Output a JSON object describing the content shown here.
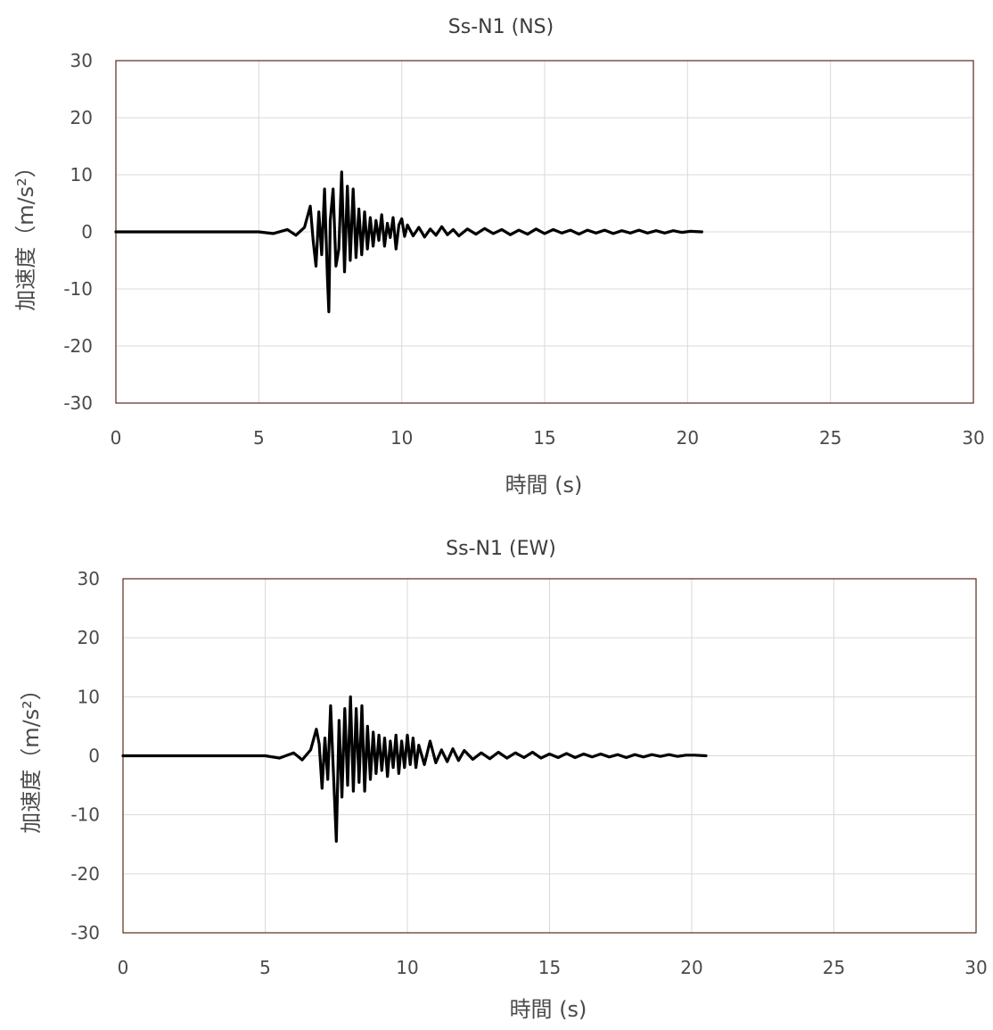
{
  "charts": [
    {
      "id": "ns",
      "title": "Ss-N1 (NS)",
      "xlabel": "時間 (s)",
      "ylabel": "加速度（m/s²）",
      "xticks": [
        "0",
        "5",
        "10",
        "15",
        "20",
        "25",
        "30"
      ],
      "yticks": [
        "30",
        "20",
        "10",
        "0",
        "-10",
        "-20",
        "-30"
      ]
    },
    {
      "id": "ew",
      "title": "Ss-N1 (EW)",
      "xlabel": "時間 (s)",
      "ylabel": "加速度（m/s²）",
      "xticks": [
        "0",
        "5",
        "10",
        "15",
        "20",
        "25",
        "30"
      ],
      "yticks": [
        "30",
        "20",
        "10",
        "0",
        "-10",
        "-20",
        "-30"
      ]
    }
  ],
  "chart_data": [
    {
      "type": "line",
      "title": "Ss-N1 (NS)",
      "xlabel": "時間 (s)",
      "ylabel": "加速度（m/s²）",
      "xlim": [
        0,
        30
      ],
      "ylim": [
        -30,
        30
      ],
      "grid": true,
      "series": [
        {
          "color": "#000000",
          "x": [
            0,
            5.0,
            5.5,
            6.0,
            6.3,
            6.6,
            6.8,
            6.9,
            7.0,
            7.1,
            7.2,
            7.3,
            7.4,
            7.45,
            7.5,
            7.6,
            7.7,
            7.8,
            7.9,
            8.0,
            8.1,
            8.2,
            8.3,
            8.4,
            8.5,
            8.6,
            8.7,
            8.8,
            8.9,
            9.0,
            9.1,
            9.2,
            9.3,
            9.4,
            9.5,
            9.6,
            9.7,
            9.8,
            9.9,
            10.0,
            10.1,
            10.2,
            10.4,
            10.6,
            10.8,
            11.0,
            11.2,
            11.4,
            11.6,
            11.8,
            12.0,
            12.3,
            12.6,
            12.9,
            13.2,
            13.5,
            13.8,
            14.1,
            14.4,
            14.7,
            15.0,
            15.3,
            15.6,
            15.9,
            16.2,
            16.5,
            16.8,
            17.1,
            17.4,
            17.7,
            18.0,
            18.3,
            18.6,
            18.9,
            19.2,
            19.5,
            19.8,
            20.1,
            20.5
          ],
          "y": [
            0,
            0,
            -0.3,
            0.4,
            -0.6,
            0.8,
            4.5,
            -1.5,
            -6,
            3.5,
            -4,
            7.5,
            -8,
            -14,
            2,
            7.5,
            -6,
            -3,
            10.5,
            -7,
            8,
            -5,
            7.5,
            -4.5,
            4,
            -4,
            3.5,
            -3,
            2.5,
            -2.5,
            2,
            -1.5,
            3,
            -2.5,
            1.5,
            -1,
            2.5,
            -3,
            1.2,
            2.3,
            -0.8,
            1.2,
            -0.7,
            0.8,
            -0.9,
            0.5,
            -0.6,
            0.9,
            -0.5,
            0.4,
            -0.7,
            0.5,
            -0.4,
            0.6,
            -0.3,
            0.4,
            -0.5,
            0.3,
            -0.4,
            0.5,
            -0.3,
            0.4,
            -0.2,
            0.3,
            -0.4,
            0.3,
            -0.2,
            0.3,
            -0.3,
            0.2,
            -0.2,
            0.3,
            -0.2,
            0.2,
            -0.2,
            0.2,
            -0.1,
            0.1,
            0
          ]
        }
      ]
    },
    {
      "type": "line",
      "title": "Ss-N1 (EW)",
      "xlabel": "時間 (s)",
      "ylabel": "加速度（m/s²）",
      "xlim": [
        0,
        30
      ],
      "ylim": [
        -30,
        30
      ],
      "grid": true,
      "series": [
        {
          "color": "#000000",
          "x": [
            0,
            5.0,
            5.5,
            6.0,
            6.3,
            6.6,
            6.8,
            6.9,
            7.0,
            7.1,
            7.2,
            7.3,
            7.4,
            7.5,
            7.6,
            7.7,
            7.8,
            7.9,
            8.0,
            8.1,
            8.2,
            8.3,
            8.4,
            8.5,
            8.6,
            8.7,
            8.8,
            8.9,
            9.0,
            9.1,
            9.2,
            9.3,
            9.4,
            9.5,
            9.6,
            9.7,
            9.8,
            9.9,
            10.0,
            10.1,
            10.2,
            10.3,
            10.4,
            10.6,
            10.8,
            11.0,
            11.2,
            11.4,
            11.6,
            11.8,
            12.0,
            12.3,
            12.6,
            12.9,
            13.2,
            13.5,
            13.8,
            14.1,
            14.4,
            14.7,
            15.0,
            15.3,
            15.6,
            15.9,
            16.2,
            16.5,
            16.8,
            17.1,
            17.4,
            17.7,
            18.0,
            18.3,
            18.6,
            18.9,
            19.2,
            19.5,
            19.8,
            20.1,
            20.5
          ],
          "y": [
            0,
            0,
            -0.4,
            0.5,
            -0.7,
            1,
            4.5,
            2,
            -5.5,
            3,
            -4,
            8.5,
            -3,
            -14.5,
            6,
            -7,
            8,
            -5,
            10,
            -6,
            8,
            -4.5,
            8.5,
            -6,
            5,
            -4,
            4,
            -3,
            3.5,
            -2.5,
            3,
            -3.5,
            2.5,
            -2,
            3.5,
            -3,
            2.5,
            -2,
            3.5,
            -1.5,
            3,
            -2,
            1.8,
            -1.5,
            2.5,
            -1.2,
            1,
            -1,
            1.2,
            -0.8,
            0.9,
            -0.6,
            0.5,
            -0.5,
            0.6,
            -0.4,
            0.5,
            -0.3,
            0.6,
            -0.4,
            0.3,
            -0.3,
            0.4,
            -0.3,
            0.3,
            -0.2,
            0.3,
            -0.2,
            0.2,
            -0.3,
            0.2,
            -0.2,
            0.2,
            -0.1,
            0.2,
            -0.1,
            0.1,
            0.1,
            0
          ]
        }
      ]
    }
  ]
}
